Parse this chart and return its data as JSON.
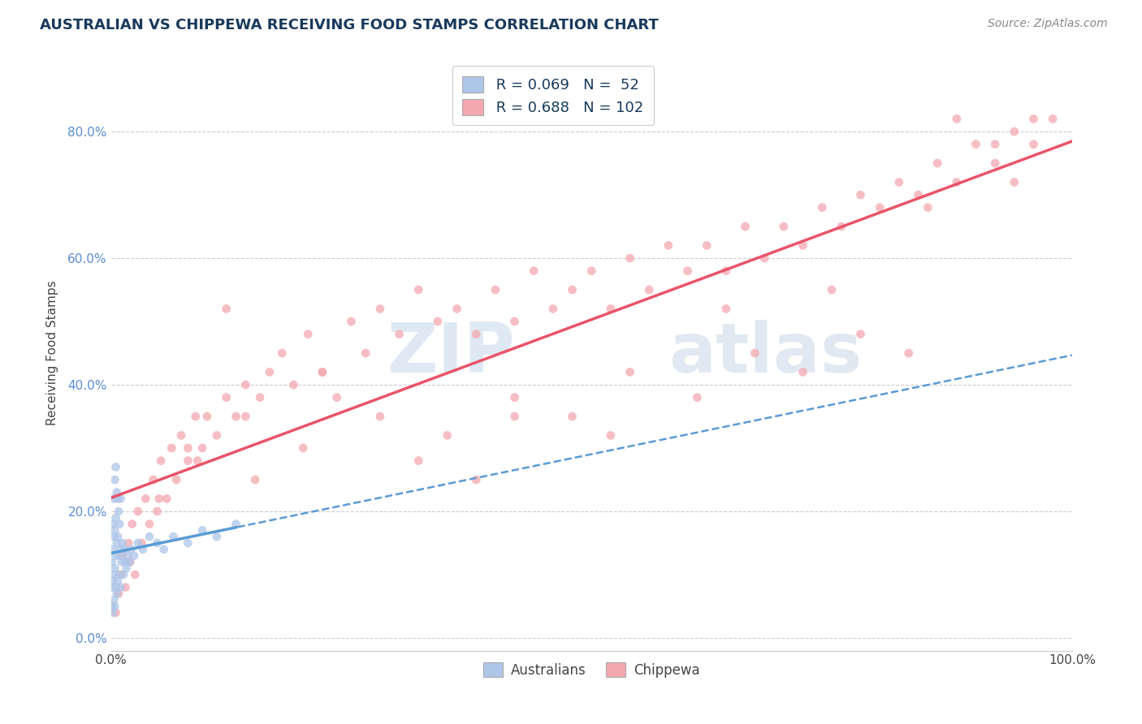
{
  "title": "AUSTRALIAN VS CHIPPEWA RECEIVING FOOD STAMPS CORRELATION CHART",
  "source": "Source: ZipAtlas.com",
  "ylabel": "Receiving Food Stamps",
  "xlim": [
    0.0,
    1.0
  ],
  "ylim": [
    -0.02,
    0.92
  ],
  "ytick_labels": [
    "0.0%",
    "20.0%",
    "40.0%",
    "60.0%",
    "80.0%"
  ],
  "ytick_values": [
    0.0,
    0.2,
    0.4,
    0.6,
    0.8
  ],
  "background_color": "#ffffff",
  "grid_color": "#cccccc",
  "watermark_zip": "ZIP",
  "watermark_atlas": "atlas",
  "legend_R1": "R = 0.069",
  "legend_N1": "N =  52",
  "legend_R2": "R = 0.688",
  "legend_N2": "N = 102",
  "color_australian": "#aec6e8",
  "color_chippewa": "#f4a8b0",
  "line_color_australian_solid": "#5b9bd5",
  "line_color_australian_dashed": "#5b9bd5",
  "line_color_chippewa": "#e8546a",
  "scatter_alpha": 0.75,
  "marker_size": 60,
  "aus_x": [
    0.001,
    0.001,
    0.001,
    0.002,
    0.002,
    0.002,
    0.002,
    0.003,
    0.003,
    0.003,
    0.003,
    0.004,
    0.004,
    0.004,
    0.004,
    0.005,
    0.005,
    0.005,
    0.005,
    0.006,
    0.006,
    0.006,
    0.007,
    0.007,
    0.007,
    0.008,
    0.008,
    0.009,
    0.009,
    0.01,
    0.01,
    0.01,
    0.011,
    0.012,
    0.013,
    0.014,
    0.015,
    0.016,
    0.017,
    0.019,
    0.021,
    0.024,
    0.028,
    0.033,
    0.04,
    0.048,
    0.055,
    0.065,
    0.08,
    0.095,
    0.11,
    0.13
  ],
  "aus_y": [
    0.05,
    0.08,
    0.12,
    0.04,
    0.09,
    0.14,
    0.18,
    0.06,
    0.1,
    0.16,
    0.22,
    0.05,
    0.11,
    0.17,
    0.25,
    0.08,
    0.13,
    0.19,
    0.27,
    0.07,
    0.15,
    0.23,
    0.09,
    0.16,
    0.22,
    0.1,
    0.2,
    0.13,
    0.18,
    0.08,
    0.14,
    0.22,
    0.12,
    0.15,
    0.1,
    0.14,
    0.12,
    0.11,
    0.13,
    0.12,
    0.14,
    0.13,
    0.15,
    0.14,
    0.16,
    0.15,
    0.14,
    0.16,
    0.15,
    0.17,
    0.16,
    0.18
  ],
  "chi_x": [
    0.005,
    0.008,
    0.01,
    0.012,
    0.015,
    0.018,
    0.02,
    0.022,
    0.025,
    0.028,
    0.032,
    0.036,
    0.04,
    0.044,
    0.048,
    0.052,
    0.058,
    0.063,
    0.068,
    0.073,
    0.08,
    0.088,
    0.095,
    0.1,
    0.11,
    0.12,
    0.13,
    0.14,
    0.155,
    0.165,
    0.178,
    0.19,
    0.205,
    0.22,
    0.235,
    0.25,
    0.265,
    0.28,
    0.3,
    0.32,
    0.34,
    0.36,
    0.38,
    0.4,
    0.42,
    0.44,
    0.46,
    0.48,
    0.5,
    0.52,
    0.54,
    0.56,
    0.58,
    0.6,
    0.62,
    0.64,
    0.66,
    0.68,
    0.7,
    0.72,
    0.74,
    0.76,
    0.78,
    0.8,
    0.82,
    0.84,
    0.86,
    0.88,
    0.9,
    0.92,
    0.94,
    0.96,
    0.98,
    0.05,
    0.09,
    0.15,
    0.2,
    0.28,
    0.35,
    0.42,
    0.48,
    0.54,
    0.61,
    0.67,
    0.72,
    0.78,
    0.83,
    0.88,
    0.92,
    0.96,
    0.08,
    0.14,
    0.22,
    0.32,
    0.42,
    0.52,
    0.64,
    0.75,
    0.85,
    0.94,
    0.12,
    0.38
  ],
  "chi_y": [
    0.04,
    0.07,
    0.1,
    0.13,
    0.08,
    0.15,
    0.12,
    0.18,
    0.1,
    0.2,
    0.15,
    0.22,
    0.18,
    0.25,
    0.2,
    0.28,
    0.22,
    0.3,
    0.25,
    0.32,
    0.28,
    0.35,
    0.3,
    0.35,
    0.32,
    0.38,
    0.35,
    0.4,
    0.38,
    0.42,
    0.45,
    0.4,
    0.48,
    0.42,
    0.38,
    0.5,
    0.45,
    0.52,
    0.48,
    0.55,
    0.5,
    0.52,
    0.48,
    0.55,
    0.5,
    0.58,
    0.52,
    0.55,
    0.58,
    0.52,
    0.6,
    0.55,
    0.62,
    0.58,
    0.62,
    0.58,
    0.65,
    0.6,
    0.65,
    0.62,
    0.68,
    0.65,
    0.7,
    0.68,
    0.72,
    0.7,
    0.75,
    0.72,
    0.78,
    0.75,
    0.8,
    0.78,
    0.82,
    0.22,
    0.28,
    0.25,
    0.3,
    0.35,
    0.32,
    0.38,
    0.35,
    0.42,
    0.38,
    0.45,
    0.42,
    0.48,
    0.45,
    0.82,
    0.78,
    0.82,
    0.3,
    0.35,
    0.42,
    0.28,
    0.35,
    0.32,
    0.52,
    0.55,
    0.68,
    0.72,
    0.52,
    0.25
  ]
}
